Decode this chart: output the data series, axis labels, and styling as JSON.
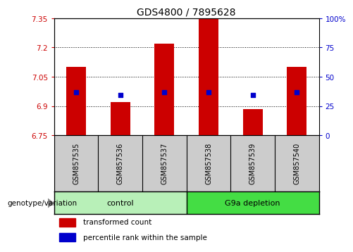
{
  "title": "GDS4800 / 7895628",
  "samples": [
    "GSM857535",
    "GSM857536",
    "GSM857537",
    "GSM857538",
    "GSM857539",
    "GSM857540"
  ],
  "bar_values": [
    7.1,
    6.92,
    7.22,
    7.345,
    6.885,
    7.1
  ],
  "bar_bottom": 6.75,
  "dot_values": [
    6.972,
    6.956,
    6.972,
    6.972,
    6.956,
    6.972
  ],
  "ylim": [
    6.75,
    7.35
  ],
  "yticks_left": [
    6.75,
    6.9,
    7.05,
    7.2,
    7.35
  ],
  "yticks_right": [
    0,
    25,
    50,
    75,
    100
  ],
  "bar_color": "#cc0000",
  "dot_color": "#0000cc",
  "control_label": "control",
  "depletion_label": "G9a depletion",
  "genotype_label": "genotype/variation",
  "legend_bar_label": "transformed count",
  "legend_dot_label": "percentile rank within the sample",
  "control_color": "#b8f0b8",
  "depletion_color": "#44dd44",
  "xlabel_area_color": "#cccccc",
  "plot_bg_color": "#ffffff"
}
